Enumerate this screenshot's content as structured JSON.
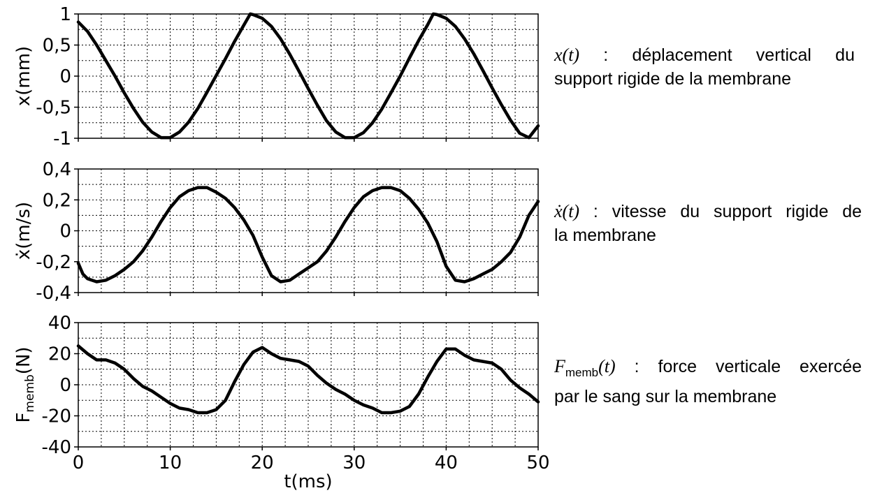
{
  "chart_data": [
    {
      "type": "line",
      "id": "displacement",
      "ylabel": "x(mm)",
      "ylim": [
        -1,
        1
      ],
      "yticks": [
        1,
        0.5,
        0,
        -0.5,
        -1
      ],
      "ytick_labels": [
        "1",
        "0,5",
        "0",
        "-0,5",
        "-1"
      ],
      "xlim": [
        0,
        50
      ],
      "grid": true,
      "series": [
        {
          "x": [
            0,
            1,
            2,
            3,
            4,
            5,
            6,
            7,
            8,
            9,
            10,
            11,
            12,
            13,
            14,
            15,
            16,
            17,
            18,
            18.7,
            19,
            20,
            21,
            22,
            23,
            24,
            25,
            26,
            27,
            28,
            29,
            30,
            31,
            32,
            33,
            34,
            35,
            36,
            37,
            38,
            38.6,
            39,
            40,
            41,
            42,
            43,
            44,
            45,
            46,
            47,
            48,
            49,
            50
          ],
          "y": [
            0.87,
            0.72,
            0.5,
            0.25,
            0.0,
            -0.27,
            -0.52,
            -0.74,
            -0.9,
            -0.99,
            -0.99,
            -0.9,
            -0.74,
            -0.52,
            -0.26,
            0.01,
            0.28,
            0.56,
            0.82,
            1.0,
            0.99,
            0.93,
            0.8,
            0.6,
            0.35,
            0.08,
            -0.2,
            -0.47,
            -0.72,
            -0.9,
            -0.99,
            -0.99,
            -0.91,
            -0.75,
            -0.53,
            -0.27,
            0.0,
            0.29,
            0.57,
            0.83,
            1.0,
            0.99,
            0.93,
            0.8,
            0.6,
            0.36,
            0.09,
            -0.19,
            -0.46,
            -0.71,
            -0.92,
            -0.99,
            -0.8
          ]
        }
      ]
    },
    {
      "type": "line",
      "id": "velocity",
      "ylabel": "ẋ(m/s)",
      "ylim": [
        -0.4,
        0.4
      ],
      "yticks": [
        0.4,
        0.2,
        0,
        -0.2,
        -0.4
      ],
      "ytick_labels": [
        "0,4",
        "0,2",
        "0",
        "-0,2",
        "-0,4"
      ],
      "xlim": [
        0,
        50
      ],
      "grid": true,
      "series": [
        {
          "x": [
            0,
            0.5,
            1,
            2,
            3,
            4,
            5,
            6,
            7,
            8,
            9,
            10,
            11,
            12,
            13,
            14,
            15,
            16,
            17,
            18,
            19,
            20,
            21,
            22,
            23,
            24,
            25,
            26,
            27,
            28,
            29,
            30,
            31,
            32,
            33,
            34,
            35,
            36,
            37,
            38,
            39,
            40,
            41,
            42,
            43,
            44,
            45,
            46,
            47,
            48,
            49,
            50
          ],
          "y": [
            -0.21,
            -0.28,
            -0.31,
            -0.33,
            -0.32,
            -0.29,
            -0.25,
            -0.2,
            -0.13,
            -0.04,
            0.06,
            0.15,
            0.22,
            0.26,
            0.28,
            0.28,
            0.25,
            0.21,
            0.15,
            0.07,
            -0.03,
            -0.17,
            -0.29,
            -0.33,
            -0.32,
            -0.28,
            -0.24,
            -0.2,
            -0.13,
            -0.04,
            0.06,
            0.15,
            0.22,
            0.26,
            0.28,
            0.28,
            0.26,
            0.21,
            0.14,
            0.05,
            -0.07,
            -0.23,
            -0.32,
            -0.33,
            -0.31,
            -0.28,
            -0.25,
            -0.2,
            -0.14,
            -0.04,
            0.1,
            0.19
          ]
        }
      ]
    },
    {
      "type": "line",
      "id": "force",
      "ylabel": "F",
      "ylabel_sub": "memb",
      "ylabel_unit": "(N)",
      "ylim": [
        -40,
        40
      ],
      "yticks": [
        40,
        20,
        0,
        -20,
        -40
      ],
      "ytick_labels": [
        "40",
        "20",
        "0",
        "-20",
        "-40"
      ],
      "xlim": [
        0,
        50
      ],
      "xticks": [
        0,
        10,
        20,
        30,
        40,
        50
      ],
      "xtick_labels": [
        "0",
        "10",
        "20",
        "30",
        "40",
        "50"
      ],
      "xlabel": "t(ms)",
      "grid": true,
      "series": [
        {
          "x": [
            0,
            1,
            2,
            3,
            4,
            5,
            6,
            7,
            8,
            9,
            10,
            11,
            12,
            13,
            14,
            15,
            16,
            17,
            18,
            19,
            20,
            21,
            22,
            23,
            24,
            25,
            26,
            27,
            28,
            29,
            30,
            31,
            32,
            33,
            34,
            35,
            36,
            37,
            38,
            39,
            40,
            41,
            42,
            43,
            44,
            45,
            46,
            47,
            48,
            49,
            50
          ],
          "y": [
            25,
            20,
            16,
            16,
            14,
            10,
            4,
            -1,
            -4,
            -8,
            -12,
            -15,
            -16,
            -18,
            -18,
            -16,
            -10,
            2,
            13,
            21,
            24,
            20,
            17,
            16,
            15,
            12,
            6,
            1,
            -3,
            -6,
            -10,
            -13,
            -15,
            -18,
            -18,
            -17,
            -14,
            -6,
            5,
            15,
            23,
            23,
            19,
            16,
            15,
            14,
            10,
            3,
            -2,
            -6,
            -11
          ]
        }
      ]
    }
  ],
  "captions": {
    "x": {
      "symbol": "x(t)",
      "text_line1": " :   déplacement   vertical   du",
      "text_line2": "support rigide de la membrane"
    },
    "v": {
      "symbol": "ẋ(t)",
      "text_line1": " : vitesse du support rigide de",
      "text_line2": "la membrane"
    },
    "f": {
      "symbol": "F",
      "symbol_sub": "memb",
      "symbol_rest": "(t)",
      "text_line1": " : force verticale exercée",
      "text_line2": "par le sang sur la membrane"
    }
  }
}
